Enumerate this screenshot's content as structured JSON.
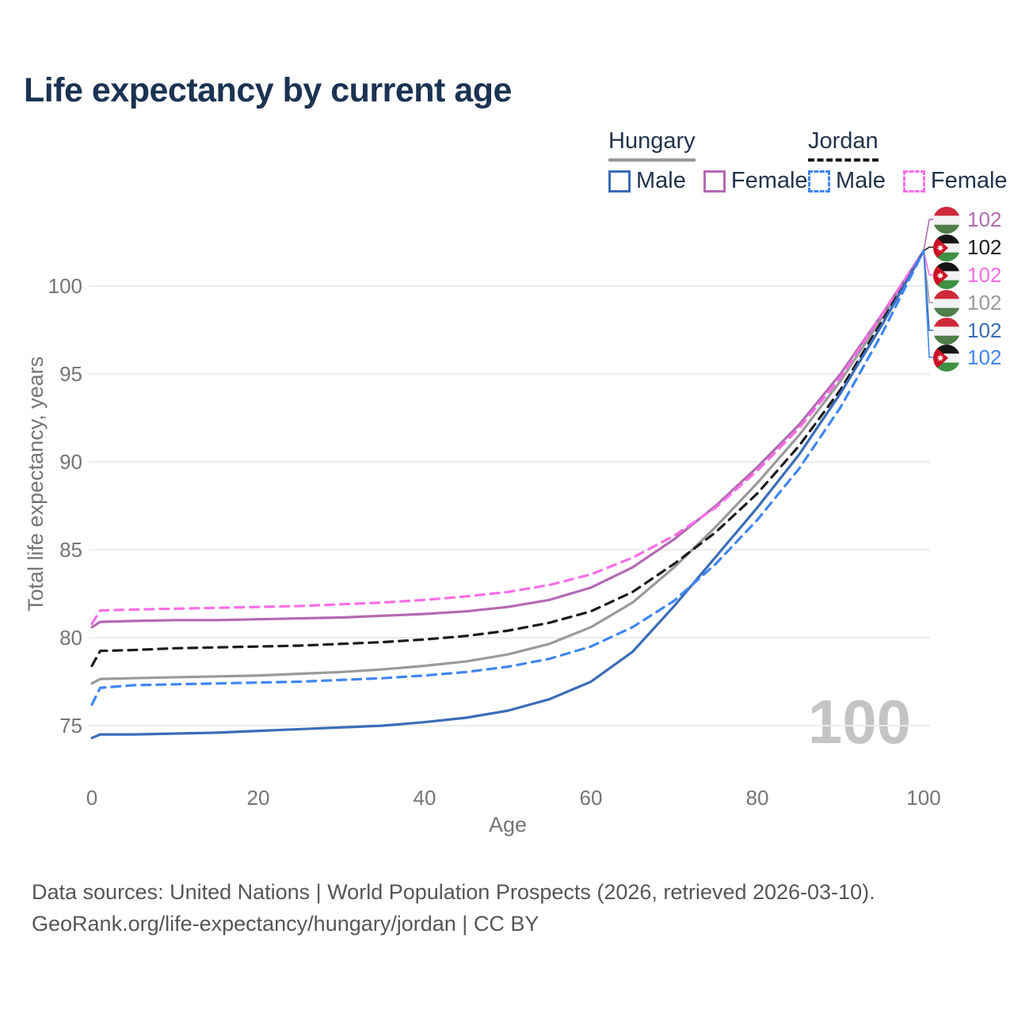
{
  "title": "Life expectancy by current age",
  "watermark": "100",
  "colors": {
    "title_text": "#1b3352",
    "legend_text": "#22334a",
    "axis_text": "#757575",
    "grid_line": "#ececec",
    "watermark_text": "#c4c4c4",
    "footer_text": "#55565a",
    "hungary_male": "#3b6cb7",
    "hungary_female": "#b26ab2",
    "hungary_total": "#9a9a9a",
    "jordan_male": "#3f86f0",
    "jordan_female": "#f96ee6",
    "jordan_total": "#1c1c1c",
    "hungary_flag": {
      "red": "#ce2939",
      "white": "#f2f2f2",
      "green": "#507d4a"
    },
    "jordan_flag": {
      "black": "#151515",
      "white": "#f2f2f2",
      "green": "#3f9144",
      "red": "#ce1126"
    }
  },
  "legend": {
    "groups": [
      {
        "country": "Hungary",
        "line_style": "solid",
        "underline_color": "#9a9a9a",
        "items": [
          {
            "label": "Male",
            "color": "#3b6cb7"
          },
          {
            "label": "Female",
            "color": "#b26ab2"
          }
        ]
      },
      {
        "country": "Jordan",
        "line_style": "dashed",
        "underline_color": "#1a1a1a",
        "items": [
          {
            "label": "Male",
            "color": "#3f86f0"
          },
          {
            "label": "Female",
            "color": "#f96ee6"
          }
        ]
      }
    ]
  },
  "y_axis": {
    "title": "Total life expectancy, years",
    "ticks": [
      75,
      80,
      85,
      90,
      95,
      100
    ]
  },
  "x_axis": {
    "title": "Age",
    "ticks": [
      0,
      20,
      40,
      60,
      80,
      100
    ]
  },
  "chart_data": {
    "type": "line",
    "title": "Life expectancy by current age",
    "xlabel": "Age",
    "ylabel": "Total life expectancy, years",
    "xlim": [
      0,
      100
    ],
    "ylim": [
      73.5,
      103
    ],
    "grid": "horizontal",
    "x": [
      0,
      1,
      5,
      10,
      15,
      20,
      25,
      30,
      35,
      40,
      45,
      50,
      55,
      60,
      65,
      70,
      75,
      80,
      85,
      90,
      95,
      100
    ],
    "series": [
      {
        "name": "Hungary",
        "sex": "total",
        "style": "solid",
        "color": "#9a9a9a",
        "values": [
          77.4,
          77.65,
          77.7,
          77.75,
          77.8,
          77.85,
          77.95,
          78.05,
          78.2,
          78.4,
          78.65,
          79.05,
          79.65,
          80.6,
          82.0,
          84.0,
          86.3,
          88.8,
          91.5,
          94.6,
          98.2,
          102
        ]
      },
      {
        "name": "Jordan",
        "sex": "total",
        "style": "dashed",
        "color": "#1c1c1c",
        "values": [
          78.4,
          79.25,
          79.3,
          79.4,
          79.45,
          79.5,
          79.55,
          79.65,
          79.75,
          79.9,
          80.1,
          80.4,
          80.85,
          81.5,
          82.6,
          84.2,
          86.0,
          88.2,
          90.9,
          94.1,
          98.0,
          102
        ]
      },
      {
        "name": "Hungary Female",
        "sex": "female",
        "style": "solid",
        "color": "#b26ab2",
        "values": [
          80.6,
          80.9,
          80.95,
          81.0,
          81.0,
          81.05,
          81.1,
          81.15,
          81.25,
          81.35,
          81.5,
          81.75,
          82.15,
          82.85,
          84.0,
          85.6,
          87.5,
          89.7,
          92.1,
          95.0,
          98.4,
          102
        ]
      },
      {
        "name": "Jordan Female",
        "sex": "female",
        "style": "dashed",
        "color": "#f96ee6",
        "values": [
          80.8,
          81.55,
          81.6,
          81.65,
          81.7,
          81.75,
          81.8,
          81.9,
          82.0,
          82.15,
          82.35,
          82.6,
          83.0,
          83.6,
          84.55,
          85.8,
          87.4,
          89.5,
          91.9,
          94.8,
          98.4,
          102
        ]
      },
      {
        "name": "Hungary Male",
        "sex": "male",
        "style": "solid",
        "color": "#3b6cb7",
        "values": [
          74.3,
          74.5,
          74.5,
          74.55,
          74.6,
          74.7,
          74.8,
          74.9,
          75.0,
          75.2,
          75.45,
          75.85,
          76.5,
          77.5,
          79.2,
          81.8,
          84.6,
          87.4,
          90.4,
          93.9,
          97.8,
          102
        ]
      },
      {
        "name": "Jordan Male",
        "sex": "male",
        "style": "dashed",
        "color": "#3f86f0",
        "values": [
          76.2,
          77.15,
          77.3,
          77.35,
          77.4,
          77.45,
          77.5,
          77.6,
          77.7,
          77.85,
          78.05,
          78.35,
          78.8,
          79.5,
          80.6,
          82.1,
          84.2,
          86.7,
          89.6,
          93.1,
          97.3,
          102
        ]
      }
    ]
  },
  "end_labels": [
    {
      "flag": "hungary",
      "value": "102",
      "color": "#b26ab2",
      "series": "Hungary Female"
    },
    {
      "flag": "jordan",
      "value": "102",
      "color": "#1a1a1a",
      "series": "Jordan"
    },
    {
      "flag": "jordan",
      "value": "102",
      "color": "#f96ee6",
      "series": "Jordan Female"
    },
    {
      "flag": "hungary",
      "value": "102",
      "color": "#9a9a9a",
      "series": "Hungary"
    },
    {
      "flag": "hungary",
      "value": "102",
      "color": "#3b6cb7",
      "series": "Hungary Male"
    },
    {
      "flag": "jordan",
      "value": "102",
      "color": "#3f86f0",
      "series": "Jordan Male"
    }
  ],
  "footer": {
    "line1": "Data sources: United Nations | World Population Prospects (2026, retrieved 2026-03-10).",
    "line2": "GeoRank.org/life-expectancy/hungary/jordan | CC BY"
  }
}
